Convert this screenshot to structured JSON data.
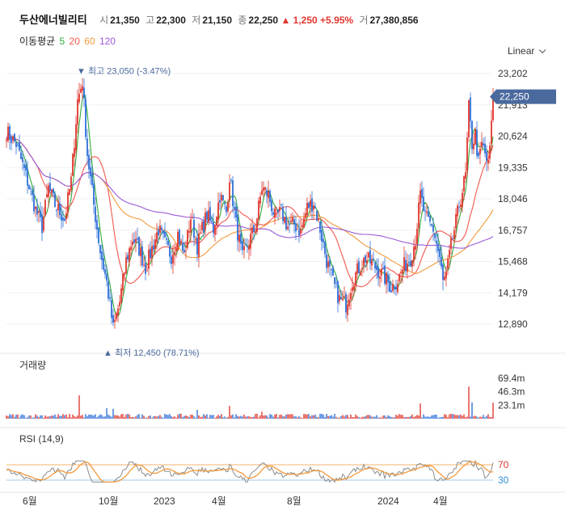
{
  "header": {
    "name": "두산에너빌리티",
    "open_label": "시",
    "open": "21,350",
    "high_label": "고",
    "high": "22,300",
    "low_label": "저",
    "low": "21,150",
    "close_label": "종",
    "close": "22,250",
    "change": "▲ 1,250",
    "change_pct": "+5.95%",
    "volume_label": "거",
    "volume": "27,380,856"
  },
  "ma_legend": {
    "label": "이동평균",
    "items": [
      {
        "period": "5",
        "color": "#2eab3a"
      },
      {
        "period": "20",
        "color": "#f2584e"
      },
      {
        "period": "60",
        "color": "#f29a3c"
      },
      {
        "period": "120",
        "color": "#9a5bd8"
      }
    ]
  },
  "scale_label": "Linear",
  "volume_panel_label": "거래량",
  "rsi_panel_label": "RSI (14,9)",
  "colors": {
    "up": "#e0362d",
    "down": "#2f6fd8",
    "rsi": "#8c8c8c",
    "rsi_signal": "#f29a3c",
    "price_tag": "#4a6a9e",
    "rsi30": "#2f8fd8"
  },
  "chart_data": {
    "type": "candlestick",
    "price_axis": {
      "ticks": [
        23202,
        21913,
        20624,
        19335,
        18046,
        16757,
        15468,
        14179,
        12890
      ],
      "tick_labels": [
        "23,202",
        "21,913",
        "20,624",
        "19,335",
        "18,046",
        "16,757",
        "15,468",
        "14,179",
        "12,890"
      ]
    },
    "current_price": {
      "value": 22250,
      "label": "22,250"
    },
    "high_annotation": {
      "value": 23050,
      "label": "▼ 최고 23,050 (-3.47%)"
    },
    "low_annotation": {
      "value": 12450,
      "label": "▲ 최저 12,450 (78.71%)"
    },
    "x_axis": {
      "labels": [
        "6월",
        "10월",
        "2023",
        "4월",
        "8월",
        "2024",
        "4월"
      ]
    },
    "close_anchors": [
      {
        "i": 0,
        "v": 20800
      },
      {
        "i": 6,
        "v": 20300
      },
      {
        "i": 12,
        "v": 19000
      },
      {
        "i": 18,
        "v": 17600
      },
      {
        "i": 22,
        "v": 16900
      },
      {
        "i": 26,
        "v": 18500
      },
      {
        "i": 30,
        "v": 17800
      },
      {
        "i": 36,
        "v": 17200
      },
      {
        "i": 40,
        "v": 18800
      },
      {
        "i": 44,
        "v": 22100
      },
      {
        "i": 47,
        "v": 22900
      },
      {
        "i": 50,
        "v": 19900
      },
      {
        "i": 54,
        "v": 17800
      },
      {
        "i": 58,
        "v": 15900
      },
      {
        "i": 62,
        "v": 14600
      },
      {
        "i": 66,
        "v": 12700
      },
      {
        "i": 70,
        "v": 13800
      },
      {
        "i": 74,
        "v": 15500
      },
      {
        "i": 78,
        "v": 16400
      },
      {
        "i": 82,
        "v": 16000
      },
      {
        "i": 86,
        "v": 15200
      },
      {
        "i": 90,
        "v": 16000
      },
      {
        "i": 94,
        "v": 16800
      },
      {
        "i": 98,
        "v": 16200
      },
      {
        "i": 102,
        "v": 15700
      },
      {
        "i": 106,
        "v": 16600
      },
      {
        "i": 110,
        "v": 15700
      },
      {
        "i": 114,
        "v": 17300
      },
      {
        "i": 118,
        "v": 16100
      },
      {
        "i": 121,
        "v": 16800
      },
      {
        "i": 124,
        "v": 17400
      },
      {
        "i": 128,
        "v": 16800
      },
      {
        "i": 132,
        "v": 18200
      },
      {
        "i": 136,
        "v": 17500
      },
      {
        "i": 138,
        "v": 19000
      },
      {
        "i": 142,
        "v": 17000
      },
      {
        "i": 146,
        "v": 15600
      },
      {
        "i": 150,
        "v": 16300
      },
      {
        "i": 154,
        "v": 16900
      },
      {
        "i": 158,
        "v": 18500
      },
      {
        "i": 162,
        "v": 18200
      },
      {
        "i": 166,
        "v": 17300
      },
      {
        "i": 170,
        "v": 17500
      },
      {
        "i": 174,
        "v": 16900
      },
      {
        "i": 178,
        "v": 17000
      },
      {
        "i": 182,
        "v": 16700
      },
      {
        "i": 186,
        "v": 17700
      },
      {
        "i": 190,
        "v": 17900
      },
      {
        "i": 194,
        "v": 16800
      },
      {
        "i": 198,
        "v": 15500
      },
      {
        "i": 202,
        "v": 14600
      },
      {
        "i": 206,
        "v": 13900
      },
      {
        "i": 210,
        "v": 13700
      },
      {
        "i": 214,
        "v": 14700
      },
      {
        "i": 218,
        "v": 15200
      },
      {
        "i": 222,
        "v": 15600
      },
      {
        "i": 226,
        "v": 15400
      },
      {
        "i": 230,
        "v": 15100
      },
      {
        "i": 234,
        "v": 14800
      },
      {
        "i": 238,
        "v": 14400
      },
      {
        "i": 242,
        "v": 14700
      },
      {
        "i": 246,
        "v": 15300
      },
      {
        "i": 250,
        "v": 15600
      },
      {
        "i": 253,
        "v": 16400
      },
      {
        "i": 256,
        "v": 18200
      },
      {
        "i": 259,
        "v": 17300
      },
      {
        "i": 262,
        "v": 17000
      },
      {
        "i": 264,
        "v": 16800
      },
      {
        "i": 268,
        "v": 15600
      },
      {
        "i": 270,
        "v": 14600
      },
      {
        "i": 272,
        "v": 14900
      },
      {
        "i": 275,
        "v": 16100
      },
      {
        "i": 278,
        "v": 17100
      },
      {
        "i": 281,
        "v": 18100
      },
      {
        "i": 284,
        "v": 19000
      },
      {
        "i": 286,
        "v": 21800
      },
      {
        "i": 288,
        "v": 20300
      },
      {
        "i": 290,
        "v": 20700
      },
      {
        "i": 292,
        "v": 19500
      },
      {
        "i": 294,
        "v": 20300
      },
      {
        "i": 296,
        "v": 19900
      },
      {
        "i": 298,
        "v": 19400
      },
      {
        "i": 300,
        "v": 21000
      },
      {
        "i": 301,
        "v": 22250
      }
    ],
    "volume_axis": {
      "ticks": [
        69400000,
        46300000,
        23100000
      ],
      "tick_labels": [
        "69.4m",
        "46.3m",
        "23.1m"
      ]
    },
    "volume_spikes": [
      {
        "i": 45,
        "v": 40000000
      },
      {
        "i": 62,
        "v": 18000000
      },
      {
        "i": 66,
        "v": 17000000
      },
      {
        "i": 118,
        "v": 15000000
      },
      {
        "i": 138,
        "v": 22000000
      },
      {
        "i": 158,
        "v": 12000000
      },
      {
        "i": 256,
        "v": 26000000
      },
      {
        "i": 286,
        "v": 55000000
      },
      {
        "i": 288,
        "v": 28000000
      },
      {
        "i": 301,
        "v": 27380856
      }
    ],
    "rsi_axis": {
      "ticks": [
        70,
        30
      ],
      "tick_labels": [
        "70",
        "30"
      ]
    }
  }
}
